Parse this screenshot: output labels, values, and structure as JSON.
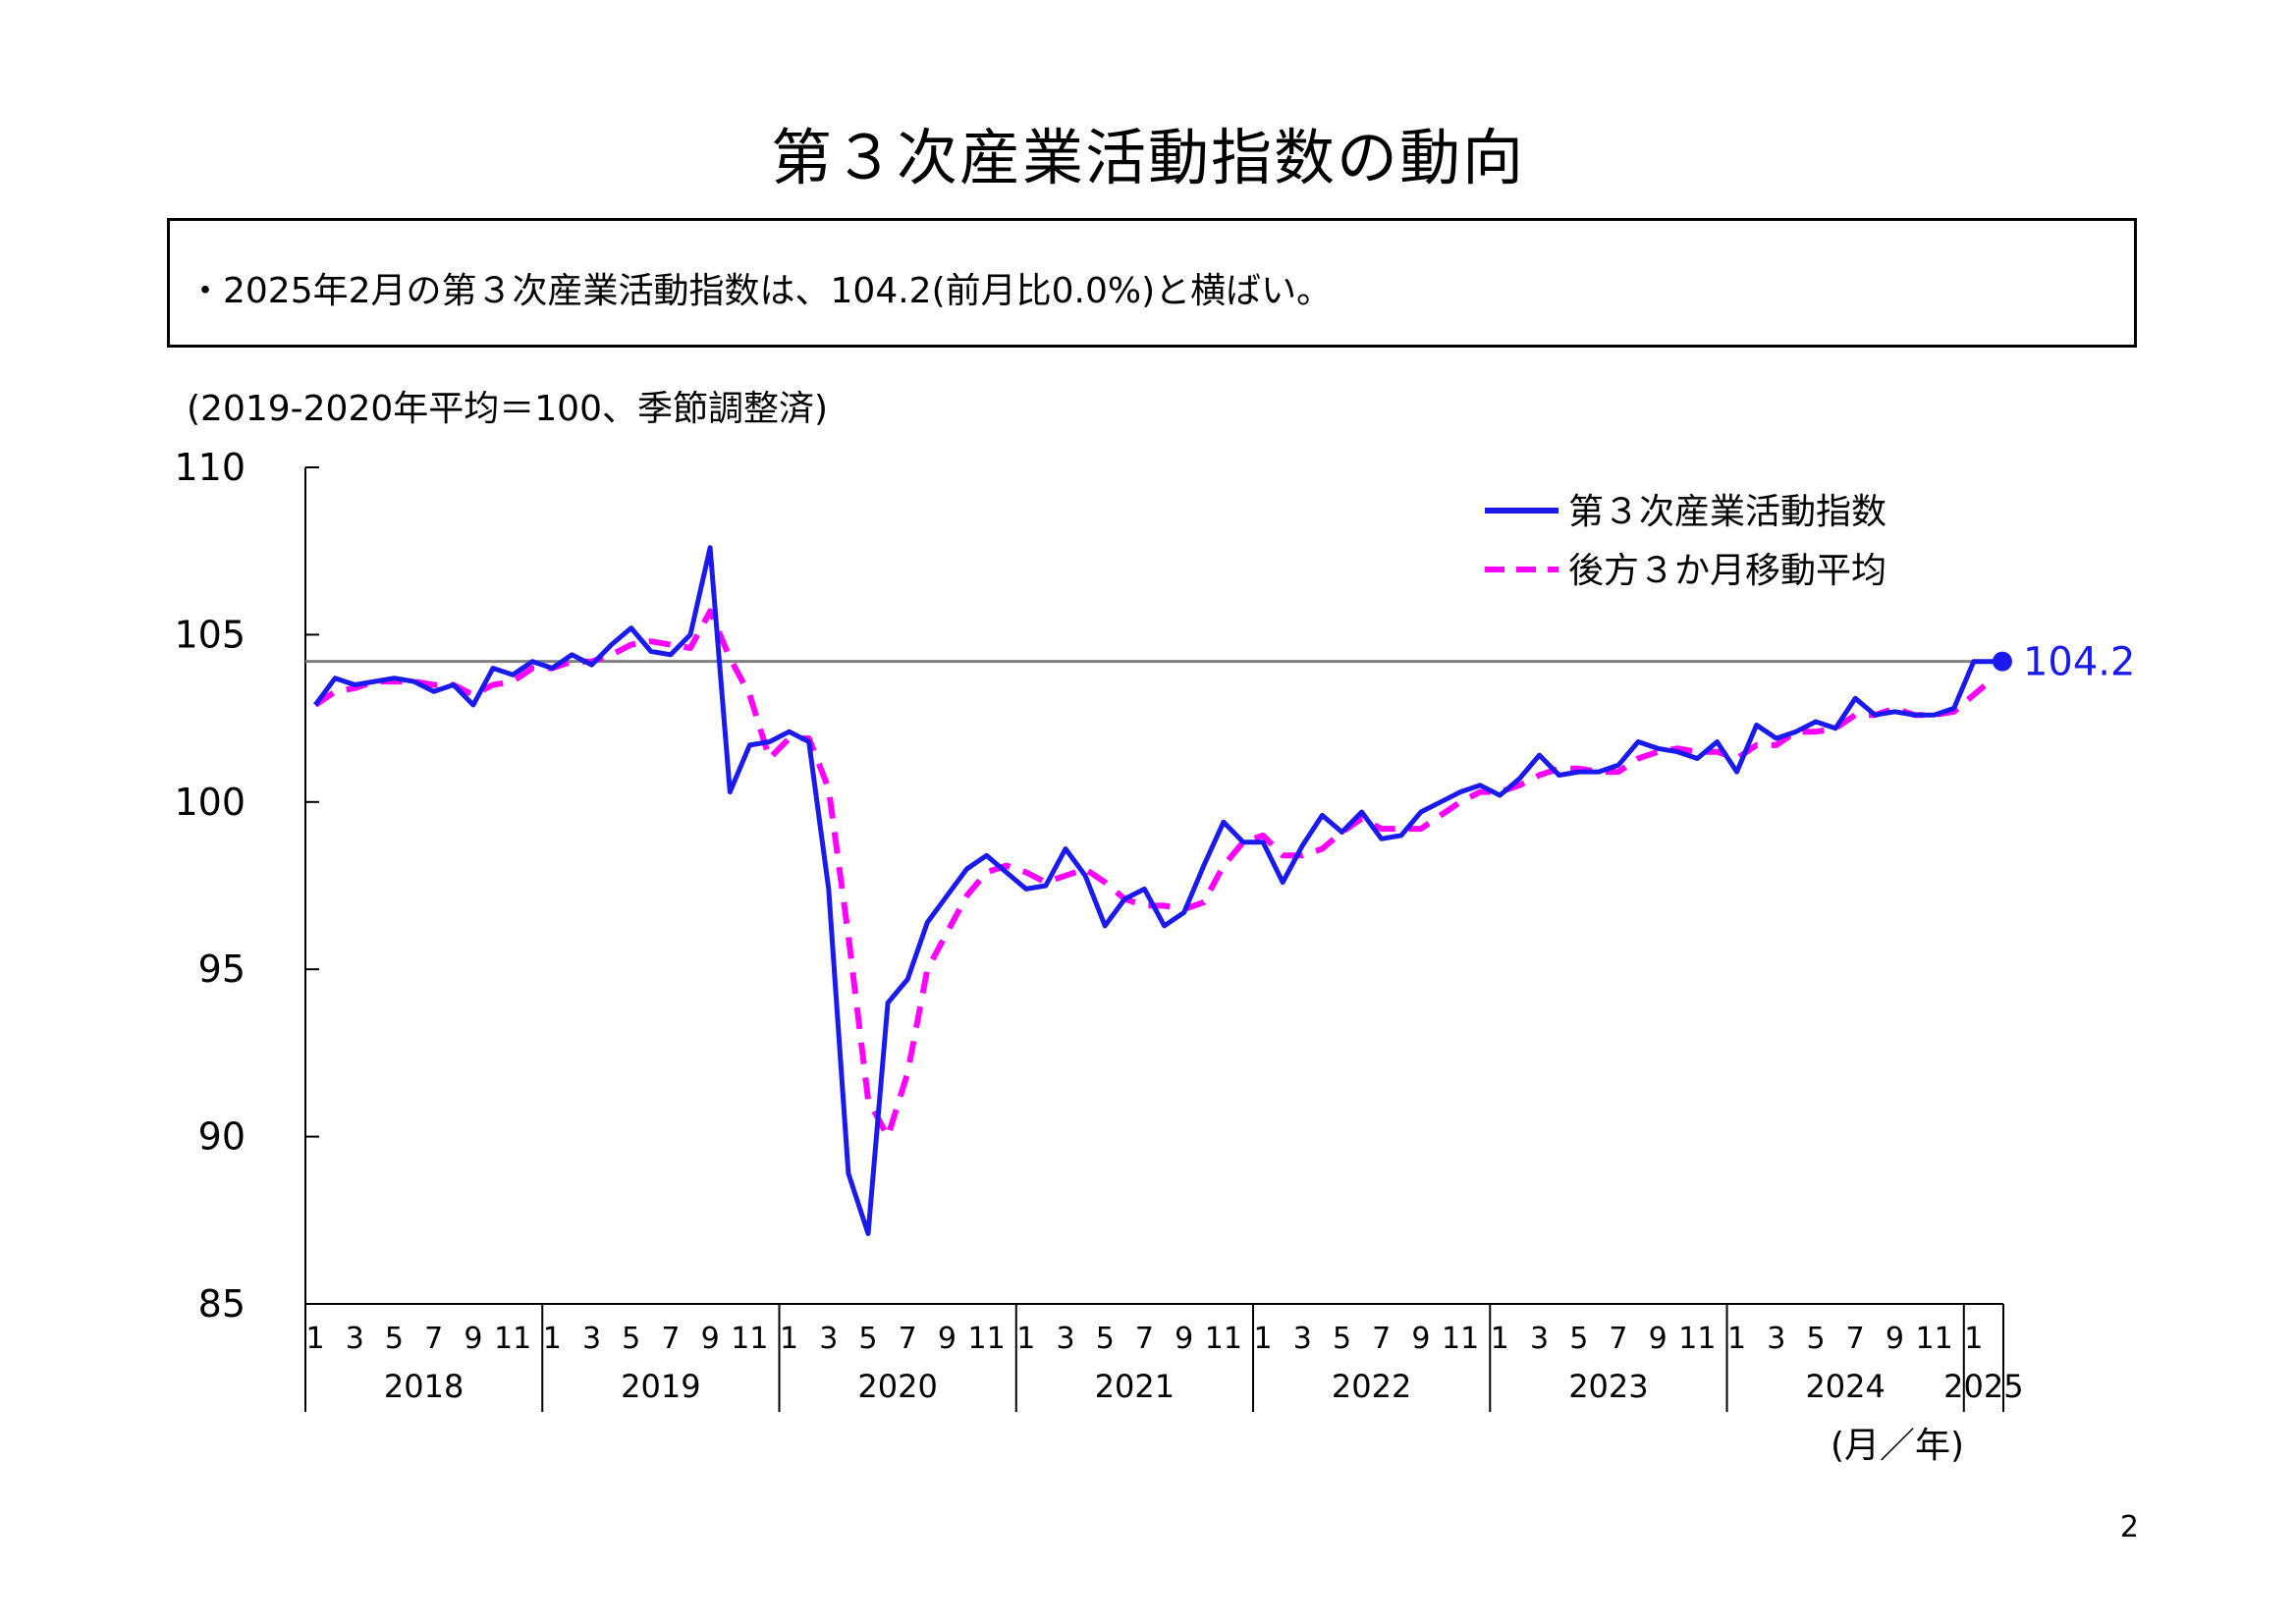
{
  "page_title": "第３次産業活動指数の動向",
  "summary": "・2025年2月の第３次産業活動指数は、104.2(前月比0.0%)と横ばい。",
  "page_number": "2",
  "chart_data": {
    "type": "line",
    "title": "",
    "unit_note": "(2019-2020年平均＝100、季節調整済)",
    "xlabel": "(月／年)",
    "ylabel": "",
    "ylim": [
      85,
      110
    ],
    "yticks": [
      "85",
      "90",
      "95",
      "100",
      "105",
      "110"
    ],
    "month_tick_labels": [
      "1",
      "3",
      "5",
      "7",
      "9",
      "11"
    ],
    "years": [
      "2018",
      "2019",
      "2020",
      "2021",
      "2022",
      "2023",
      "2024",
      "2025"
    ],
    "x_start": "2018-01",
    "x_end": "2025-02",
    "reference_line": 104.2,
    "last_value_label": "104.2",
    "colors": {
      "index": "#1a1aee",
      "moving_average": "#ff00ff",
      "reference": "#808080"
    },
    "legend_position": "top-right",
    "series": [
      {
        "name": "第３次産業活動指数",
        "values": [
          102.9,
          103.7,
          103.5,
          103.6,
          103.7,
          103.6,
          103.3,
          103.5,
          102.9,
          104.0,
          103.8,
          104.2,
          104.0,
          104.4,
          104.1,
          104.7,
          105.2,
          104.5,
          104.4,
          105.0,
          107.6,
          100.3,
          101.7,
          101.8,
          102.1,
          101.8,
          97.4,
          88.9,
          87.1,
          94.0,
          94.7,
          96.4,
          97.2,
          98.0,
          98.4,
          97.9,
          97.4,
          97.5,
          98.6,
          97.8,
          96.3,
          97.1,
          97.4,
          96.3,
          96.7,
          98.1,
          99.4,
          98.8,
          98.8,
          97.6,
          98.7,
          99.6,
          99.1,
          99.7,
          98.9,
          99.0,
          99.7,
          100.0,
          100.3,
          100.5,
          100.2,
          100.7,
          101.4,
          100.8,
          100.9,
          100.9,
          101.1,
          101.8,
          101.6,
          101.5,
          101.3,
          101.8,
          100.9,
          102.3,
          101.9,
          102.1,
          102.4,
          102.2,
          103.1,
          102.6,
          102.7,
          102.6,
          102.6,
          102.8,
          104.2,
          104.2
        ]
      },
      {
        "name": "後方３か月移動平均",
        "values": [
          102.9,
          103.3,
          103.4,
          103.6,
          103.6,
          103.6,
          103.5,
          103.5,
          103.2,
          103.5,
          103.6,
          104.0,
          104.0,
          104.2,
          104.2,
          104.4,
          104.7,
          104.8,
          104.7,
          104.6,
          105.7,
          104.3,
          103.2,
          101.3,
          101.9,
          101.9,
          100.4,
          96.0,
          91.1,
          90.0,
          91.9,
          95.0,
          96.1,
          97.2,
          97.9,
          98.1,
          97.9,
          97.6,
          97.8,
          98.0,
          97.6,
          97.1,
          96.9,
          96.9,
          96.8,
          97.0,
          98.1,
          98.8,
          99.0,
          98.4,
          98.4,
          98.6,
          99.1,
          99.5,
          99.2,
          99.2,
          99.2,
          99.6,
          100.0,
          100.3,
          100.3,
          100.5,
          100.8,
          101.0,
          101.0,
          100.9,
          100.9,
          101.3,
          101.5,
          101.6,
          101.5,
          101.5,
          101.3,
          101.7,
          101.7,
          102.1,
          102.1,
          102.2,
          102.6,
          102.6,
          102.8,
          102.6,
          102.6,
          102.7,
          103.2,
          103.7
        ]
      }
    ]
  }
}
